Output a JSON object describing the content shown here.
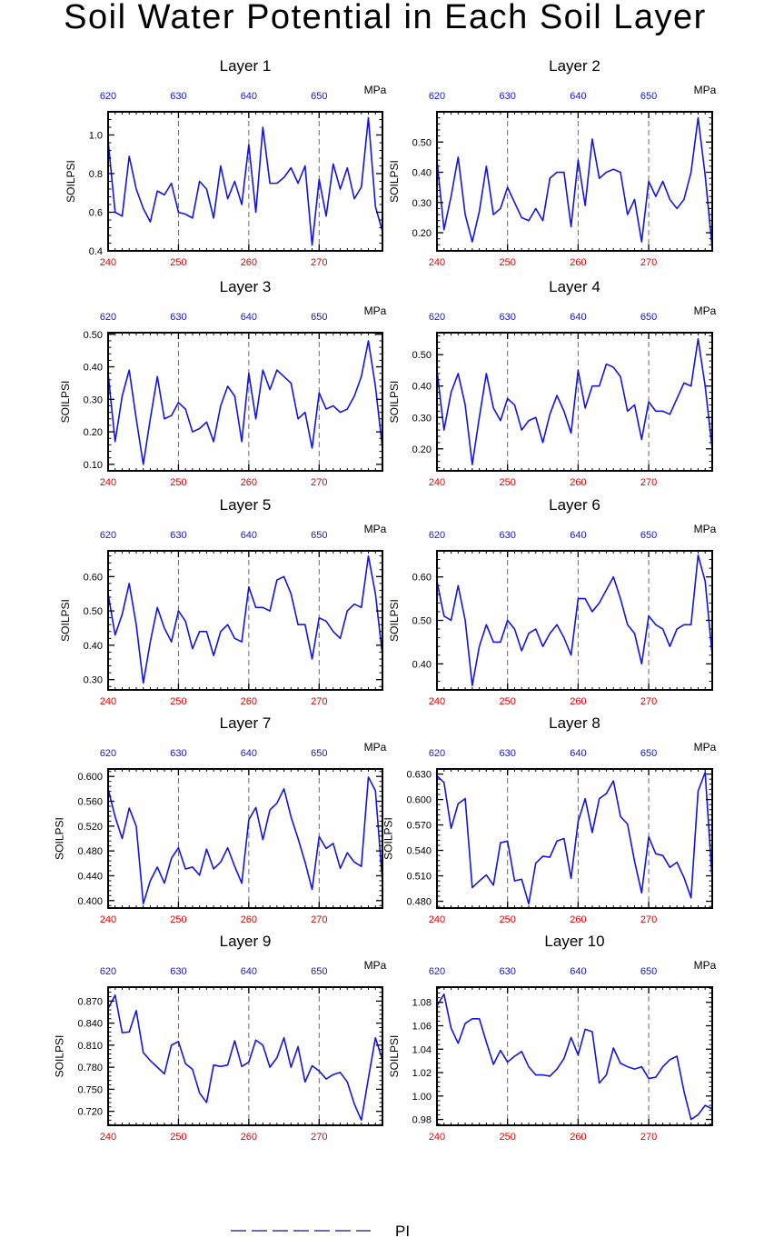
{
  "title": "Soil Water Potential in Each Soil Layer",
  "legend": {
    "label": "PI",
    "placement": "bottom-center",
    "line_color": "#3a3aa0"
  },
  "chart_data": [
    {
      "type": "line",
      "title": "Layer 1",
      "ylabel": "SOILPSI",
      "top_axis_unit": "MPa",
      "xlim": [
        240,
        279
      ],
      "xticks": [
        240,
        250,
        260,
        270
      ],
      "top_xticks": [
        "620",
        "630",
        "640",
        "650"
      ],
      "ylim": [
        0.4,
        1.12
      ],
      "yticks": [
        "0.4",
        "0.6",
        "0.8",
        "1.0"
      ],
      "series": [
        {
          "color": "#1414e0",
          "x_start": 240,
          "x_step": 1,
          "values": [
            0.97,
            0.6,
            0.58,
            0.89,
            0.72,
            0.62,
            0.55,
            0.71,
            0.69,
            0.75,
            0.6,
            0.59,
            0.57,
            0.76,
            0.72,
            0.57,
            0.84,
            0.67,
            0.76,
            0.64,
            0.95,
            0.6,
            1.04,
            0.75,
            0.75,
            0.78,
            0.83,
            0.75,
            0.84,
            0.43,
            0.77,
            0.58,
            0.85,
            0.72,
            0.83,
            0.67,
            0.73,
            1.09,
            0.63,
            0.5
          ]
        }
      ],
      "vlines": [
        250,
        260,
        270
      ]
    },
    {
      "type": "line",
      "title": "Layer 2",
      "ylabel": "SOILPSI",
      "top_axis_unit": "MPa",
      "xlim": [
        240,
        279
      ],
      "xticks": [
        240,
        250,
        260,
        270
      ],
      "top_xticks": [
        "620",
        "630",
        "640",
        "650"
      ],
      "ylim": [
        0.14,
        0.6
      ],
      "yticks": [
        "0.20",
        "0.30",
        "0.40",
        "0.50"
      ],
      "series": [
        {
          "color": "#1414e0",
          "x_start": 240,
          "x_step": 1,
          "values": [
            0.44,
            0.21,
            0.32,
            0.45,
            0.26,
            0.17,
            0.27,
            0.42,
            0.26,
            0.28,
            0.35,
            0.3,
            0.25,
            0.24,
            0.28,
            0.24,
            0.38,
            0.4,
            0.4,
            0.22,
            0.44,
            0.29,
            0.51,
            0.38,
            0.4,
            0.41,
            0.4,
            0.26,
            0.31,
            0.17,
            0.37,
            0.32,
            0.37,
            0.31,
            0.28,
            0.31,
            0.4,
            0.58,
            0.39,
            0.15
          ]
        }
      ],
      "vlines": [
        250,
        260,
        270
      ]
    },
    {
      "type": "line",
      "title": "Layer 3",
      "ylabel": "SOILPSI",
      "top_axis_unit": "MPa",
      "xlim": [
        240,
        279
      ],
      "xticks": [
        240,
        250,
        260,
        270
      ],
      "top_xticks": [
        "620",
        "630",
        "640",
        "650"
      ],
      "ylim": [
        0.08,
        0.505
      ],
      "yticks": [
        "0.10",
        "0.20",
        "0.30",
        "0.40",
        "0.50"
      ],
      "series": [
        {
          "color": "#1414e0",
          "x_start": 240,
          "x_step": 1,
          "values": [
            0.38,
            0.17,
            0.31,
            0.39,
            0.24,
            0.1,
            0.24,
            0.37,
            0.24,
            0.25,
            0.29,
            0.27,
            0.2,
            0.21,
            0.23,
            0.17,
            0.28,
            0.34,
            0.31,
            0.17,
            0.38,
            0.24,
            0.39,
            0.33,
            0.39,
            0.37,
            0.35,
            0.24,
            0.26,
            0.15,
            0.32,
            0.27,
            0.28,
            0.26,
            0.27,
            0.31,
            0.37,
            0.48,
            0.34,
            0.15
          ]
        }
      ],
      "vlines": [
        250,
        260,
        270
      ]
    },
    {
      "type": "line",
      "title": "Layer 4",
      "ylabel": "SOILPSI",
      "top_axis_unit": "MPa",
      "xlim": [
        240,
        279
      ],
      "xticks": [
        240,
        250,
        260,
        270
      ],
      "top_xticks": [
        "620",
        "630",
        "640",
        "650"
      ],
      "ylim": [
        0.13,
        0.57
      ],
      "yticks": [
        "0.20",
        "0.30",
        "0.40",
        "0.50"
      ],
      "series": [
        {
          "color": "#1414e0",
          "x_start": 240,
          "x_step": 1,
          "values": [
            0.45,
            0.26,
            0.38,
            0.44,
            0.34,
            0.15,
            0.3,
            0.44,
            0.33,
            0.29,
            0.36,
            0.34,
            0.26,
            0.29,
            0.3,
            0.22,
            0.31,
            0.37,
            0.32,
            0.25,
            0.45,
            0.33,
            0.4,
            0.4,
            0.47,
            0.46,
            0.43,
            0.32,
            0.34,
            0.23,
            0.35,
            0.32,
            0.32,
            0.31,
            0.36,
            0.41,
            0.4,
            0.55,
            0.4,
            0.2
          ]
        }
      ],
      "vlines": [
        250,
        260,
        270
      ]
    },
    {
      "type": "line",
      "title": "Layer 5",
      "ylabel": "SOILPSI",
      "top_axis_unit": "MPa",
      "xlim": [
        240,
        279
      ],
      "xticks": [
        240,
        250,
        260,
        270
      ],
      "top_xticks": [
        "620",
        "630",
        "640",
        "650"
      ],
      "ylim": [
        0.27,
        0.675
      ],
      "yticks": [
        "0.30",
        "0.40",
        "0.50",
        "0.60"
      ],
      "series": [
        {
          "color": "#1414e0",
          "x_start": 240,
          "x_step": 1,
          "values": [
            0.55,
            0.43,
            0.49,
            0.58,
            0.46,
            0.29,
            0.41,
            0.51,
            0.45,
            0.41,
            0.5,
            0.47,
            0.39,
            0.44,
            0.44,
            0.37,
            0.44,
            0.46,
            0.42,
            0.41,
            0.57,
            0.51,
            0.51,
            0.5,
            0.59,
            0.6,
            0.55,
            0.46,
            0.46,
            0.36,
            0.48,
            0.47,
            0.44,
            0.42,
            0.5,
            0.52,
            0.51,
            0.66,
            0.55,
            0.37
          ]
        }
      ],
      "vlines": [
        250,
        260,
        270
      ]
    },
    {
      "type": "line",
      "title": "Layer 6",
      "ylabel": "SOILPSI",
      "top_axis_unit": "MPa",
      "xlim": [
        240,
        279
      ],
      "xticks": [
        240,
        250,
        260,
        270
      ],
      "top_xticks": [
        "620",
        "630",
        "640",
        "650"
      ],
      "ylim": [
        0.34,
        0.66
      ],
      "yticks": [
        "0.40",
        "0.50",
        "0.60"
      ],
      "series": [
        {
          "color": "#1414e0",
          "x_start": 240,
          "x_step": 1,
          "values": [
            0.59,
            0.51,
            0.5,
            0.58,
            0.5,
            0.35,
            0.44,
            0.49,
            0.45,
            0.45,
            0.5,
            0.48,
            0.43,
            0.47,
            0.48,
            0.44,
            0.47,
            0.49,
            0.46,
            0.42,
            0.55,
            0.55,
            0.52,
            0.54,
            0.57,
            0.6,
            0.55,
            0.49,
            0.47,
            0.4,
            0.51,
            0.49,
            0.48,
            0.44,
            0.48,
            0.49,
            0.49,
            0.65,
            0.59,
            0.42
          ]
        }
      ],
      "vlines": [
        250,
        260,
        270
      ]
    },
    {
      "type": "line",
      "title": "Layer 7",
      "ylabel": "SOILPSI",
      "top_axis_unit": "MPa",
      "xlim": [
        240,
        279
      ],
      "xticks": [
        240,
        250,
        260,
        270
      ],
      "top_xticks": [
        "620",
        "630",
        "640",
        "650"
      ],
      "ylim": [
        0.388,
        0.612
      ],
      "yticks": [
        "0.400",
        "0.440",
        "0.480",
        "0.520",
        "0.560",
        "0.600"
      ],
      "series": [
        {
          "color": "#1414e0",
          "x_start": 240,
          "x_step": 1,
          "values": [
            0.58,
            0.535,
            0.5,
            0.549,
            0.52,
            0.395,
            0.432,
            0.454,
            0.428,
            0.468,
            0.485,
            0.451,
            0.454,
            0.441,
            0.483,
            0.451,
            0.462,
            0.485,
            0.455,
            0.428,
            0.53,
            0.55,
            0.498,
            0.546,
            0.557,
            0.58,
            0.535,
            0.5,
            0.462,
            0.418,
            0.503,
            0.484,
            0.492,
            0.452,
            0.477,
            0.462,
            0.455,
            0.599,
            0.577,
            0.43
          ]
        }
      ],
      "vlines": [
        250,
        260,
        270
      ]
    },
    {
      "type": "line",
      "title": "Layer 8",
      "ylabel": "SOILPSI",
      "top_axis_unit": "MPa",
      "xlim": [
        240,
        279
      ],
      "xticks": [
        240,
        250,
        260,
        270
      ],
      "top_xticks": [
        "620",
        "630",
        "640",
        "650"
      ],
      "ylim": [
        0.472,
        0.636
      ],
      "yticks": [
        "0.480",
        "0.510",
        "0.540",
        "0.570",
        "0.600",
        "0.630"
      ],
      "series": [
        {
          "color": "#1414e0",
          "x_start": 240,
          "x_step": 1,
          "values": [
            0.628,
            0.62,
            0.566,
            0.595,
            0.601,
            0.496,
            0.504,
            0.511,
            0.499,
            0.549,
            0.551,
            0.504,
            0.506,
            0.477,
            0.525,
            0.533,
            0.532,
            0.551,
            0.554,
            0.507,
            0.574,
            0.601,
            0.561,
            0.601,
            0.607,
            0.622,
            0.58,
            0.571,
            0.527,
            0.49,
            0.556,
            0.536,
            0.534,
            0.52,
            0.526,
            0.508,
            0.484,
            0.61,
            0.632,
            0.505
          ]
        }
      ],
      "vlines": [
        250,
        260,
        270
      ]
    },
    {
      "type": "line",
      "title": "Layer 9",
      "ylabel": "SOILPSI",
      "top_axis_unit": "MPa",
      "xlim": [
        240,
        279
      ],
      "xticks": [
        240,
        250,
        260,
        270
      ],
      "top_xticks": [
        "620",
        "630",
        "640",
        "650"
      ],
      "ylim": [
        0.701,
        0.889
      ],
      "yticks": [
        "0.720",
        "0.750",
        "0.780",
        "0.810",
        "0.840",
        "0.870"
      ],
      "series": [
        {
          "color": "#1414e0",
          "x_start": 240,
          "x_step": 1,
          "values": [
            0.86,
            0.878,
            0.827,
            0.828,
            0.857,
            0.8,
            0.789,
            0.78,
            0.771,
            0.81,
            0.815,
            0.785,
            0.777,
            0.745,
            0.732,
            0.783,
            0.781,
            0.783,
            0.816,
            0.781,
            0.787,
            0.817,
            0.81,
            0.78,
            0.793,
            0.82,
            0.78,
            0.808,
            0.76,
            0.782,
            0.775,
            0.764,
            0.77,
            0.773,
            0.76,
            0.73,
            0.708,
            0.765,
            0.82,
            0.79
          ]
        }
      ],
      "vlines": [
        250,
        260,
        270
      ]
    },
    {
      "type": "line",
      "title": "Layer 10",
      "ylabel": "SOILPSI",
      "top_axis_unit": "MPa",
      "xlim": [
        240,
        279
      ],
      "xticks": [
        240,
        250,
        260,
        270
      ],
      "top_xticks": [
        "620",
        "630",
        "640",
        "650"
      ],
      "ylim": [
        0.975,
        1.093
      ],
      "yticks": [
        "0.98",
        "1.00",
        "1.02",
        "1.04",
        "1.06",
        "1.08"
      ],
      "series": [
        {
          "color": "#1414e0",
          "x_start": 240,
          "x_step": 1,
          "values": [
            1.077,
            1.087,
            1.058,
            1.045,
            1.062,
            1.066,
            1.066,
            1.046,
            1.027,
            1.039,
            1.029,
            1.034,
            1.038,
            1.025,
            1.018,
            1.018,
            1.017,
            1.023,
            1.032,
            1.05,
            1.035,
            1.057,
            1.055,
            1.011,
            1.018,
            1.041,
            1.028,
            1.025,
            1.023,
            1.025,
            1.015,
            1.016,
            1.025,
            1.031,
            1.034,
            1.004,
            0.98,
            0.984,
            0.992,
            0.989
          ]
        }
      ],
      "vlines": [
        250,
        260,
        270
      ]
    }
  ]
}
